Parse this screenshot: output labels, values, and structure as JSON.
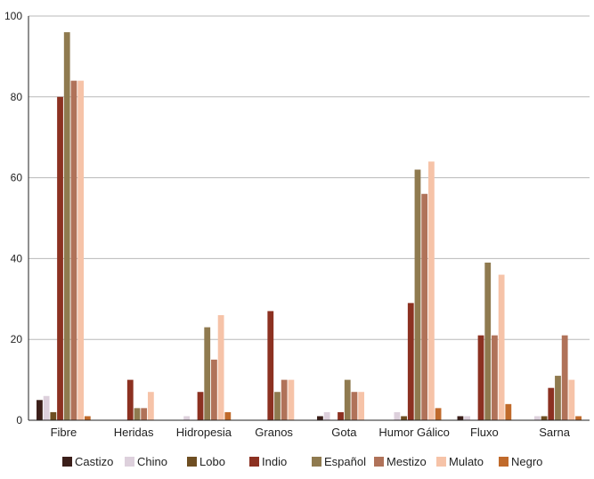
{
  "chart_data": {
    "type": "bar",
    "categories": [
      "Fibre",
      "Heridas",
      "Hidropesia",
      "Granos",
      "Gota",
      "Humor Gálico",
      "Fluxo",
      "Sarna"
    ],
    "series": [
      {
        "name": "Castizo",
        "color": "#3b1f1a",
        "values": [
          5,
          0,
          0,
          0,
          1,
          0,
          1,
          0
        ]
      },
      {
        "name": "Chino",
        "color": "#ddd0dc",
        "values": [
          6,
          0,
          1,
          0,
          2,
          2,
          1,
          1
        ]
      },
      {
        "name": "Lobo",
        "color": "#6e4e22",
        "values": [
          2,
          0,
          0,
          0,
          0,
          1,
          0,
          1
        ]
      },
      {
        "name": "Indio",
        "color": "#8c3121",
        "values": [
          80,
          10,
          7,
          27,
          2,
          29,
          21,
          8
        ]
      },
      {
        "name": "Español",
        "color": "#8f7a4f",
        "values": [
          96,
          3,
          23,
          7,
          10,
          62,
          39,
          11
        ]
      },
      {
        "name": "Mestizo",
        "color": "#b07259",
        "values": [
          84,
          3,
          15,
          10,
          7,
          56,
          21,
          21
        ]
      },
      {
        "name": "Mulato",
        "color": "#f6c3a8",
        "values": [
          84,
          7,
          26,
          10,
          7,
          64,
          36,
          10
        ]
      },
      {
        "name": "Negro",
        "color": "#c06a2b",
        "values": [
          1,
          0,
          2,
          0,
          0,
          3,
          4,
          1
        ]
      }
    ],
    "ylim": [
      0,
      100
    ],
    "yticks": [
      0,
      20,
      40,
      60,
      80,
      100
    ],
    "grid": true,
    "legend_position": "bottom",
    "title": "",
    "xlabel": "",
    "ylabel": ""
  }
}
